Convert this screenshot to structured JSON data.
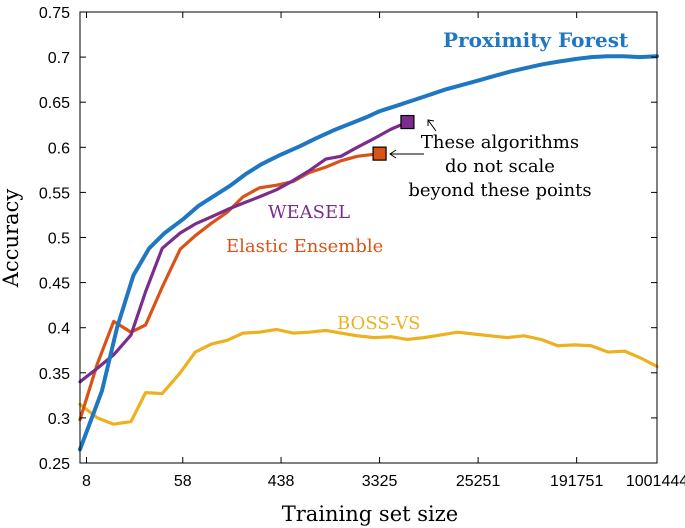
{
  "chart_data": {
    "type": "line",
    "title": "",
    "xlabel": "Training set size",
    "ylabel": "Accuracy",
    "x_scale": "log",
    "xlim": [
      7,
      1001444
    ],
    "ylim": [
      0.25,
      0.75
    ],
    "x_ticks": [
      8,
      58,
      438,
      3325,
      25251,
      191751,
      1001444
    ],
    "x_tick_labels": [
      "8",
      "58",
      "438",
      "3325",
      "25251",
      "191751",
      "1001444"
    ],
    "y_ticks": [
      0.25,
      0.3,
      0.35,
      0.4,
      0.45,
      0.5,
      0.55,
      0.6,
      0.65,
      0.7,
      0.75
    ],
    "y_tick_labels": [
      "0.25",
      "0.3",
      "0.35",
      "0.4",
      "0.45",
      "0.5",
      "0.55",
      "0.6",
      "0.65",
      "0.7",
      "0.75"
    ],
    "grid": false,
    "series": [
      {
        "name": "Proximity Forest",
        "color": "#1f77c2",
        "x": [
          7,
          11,
          15,
          21,
          29,
          40,
          58,
          80,
          110,
          152,
          210,
          290,
          438,
          640,
          900,
          1300,
          1800,
          2500,
          3325,
          4700,
          6600,
          9200,
          12800,
          18000,
          25251,
          35000,
          49000,
          68000,
          95000,
          132000,
          191751,
          260000,
          360000,
          500000,
          700000,
          1001444
        ],
        "y": [
          0.265,
          0.33,
          0.4,
          0.458,
          0.488,
          0.505,
          0.52,
          0.535,
          0.546,
          0.557,
          0.57,
          0.581,
          0.592,
          0.601,
          0.61,
          0.619,
          0.626,
          0.633,
          0.64,
          0.646,
          0.652,
          0.658,
          0.664,
          0.669,
          0.674,
          0.679,
          0.684,
          0.688,
          0.692,
          0.695,
          0.698,
          0.7,
          0.701,
          0.701,
          0.7,
          0.701
        ]
      },
      {
        "name": "WEASEL",
        "color": "#7b2d8e",
        "x": [
          7,
          10,
          14,
          20,
          27,
          38,
          55,
          75,
          105,
          145,
          200,
          280,
          400,
          560,
          780,
          1100,
          1500,
          2100,
          3000,
          4200,
          5900
        ],
        "y": [
          0.34,
          0.355,
          0.37,
          0.392,
          0.44,
          0.488,
          0.505,
          0.515,
          0.523,
          0.531,
          0.538,
          0.545,
          0.553,
          0.563,
          0.574,
          0.587,
          0.59,
          0.6,
          0.61,
          0.62,
          0.628
        ]
      },
      {
        "name": "Elastic Ensemble",
        "color": "#d95319",
        "x": [
          7,
          10,
          14,
          20,
          27,
          38,
          55,
          75,
          105,
          145,
          200,
          280,
          400,
          560,
          780,
          1100,
          1500,
          2100,
          3325
        ],
        "y": [
          0.298,
          0.36,
          0.407,
          0.395,
          0.403,
          0.445,
          0.487,
          0.502,
          0.516,
          0.528,
          0.545,
          0.555,
          0.558,
          0.562,
          0.572,
          0.578,
          0.585,
          0.59,
          0.593
        ]
      },
      {
        "name": "BOSS-VS",
        "color": "#edb120",
        "x": [
          7,
          10,
          14,
          20,
          27,
          38,
          55,
          75,
          105,
          145,
          200,
          280,
          400,
          560,
          780,
          1100,
          1500,
          2100,
          3000,
          4200,
          5900,
          8300,
          11700,
          16500,
          23000,
          32500,
          46000,
          65000,
          92000,
          130000,
          183000,
          258000,
          365000,
          515000,
          727000,
          1001444
        ],
        "y": [
          0.315,
          0.3,
          0.293,
          0.296,
          0.328,
          0.327,
          0.35,
          0.373,
          0.382,
          0.386,
          0.394,
          0.395,
          0.398,
          0.394,
          0.395,
          0.397,
          0.394,
          0.391,
          0.389,
          0.39,
          0.387,
          0.389,
          0.392,
          0.395,
          0.393,
          0.391,
          0.389,
          0.391,
          0.387,
          0.38,
          0.381,
          0.38,
          0.373,
          0.374,
          0.366,
          0.357
        ]
      }
    ],
    "markers": [
      {
        "series": "WEASEL",
        "x": 5900,
        "y": 0.628,
        "color": "#7b2d8e"
      },
      {
        "series": "Elastic Ensemble",
        "x": 3325,
        "y": 0.593,
        "color": "#d95319"
      }
    ],
    "labels": {
      "proximity_forest": "Proximity Forest",
      "weasel": "WEASEL",
      "elastic_ensemble": "Elastic Ensemble",
      "boss_vs": "BOSS-VS"
    },
    "annotation_lines": [
      "These algorithms",
      "do not scale",
      "beyond these points"
    ]
  }
}
